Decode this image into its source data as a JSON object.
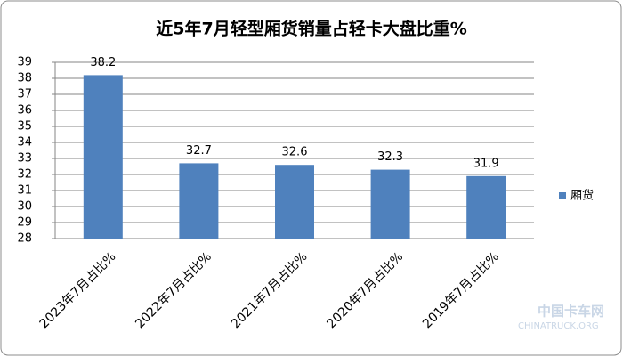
{
  "chart_data": {
    "type": "bar",
    "title": "近5年7月轻型厢货销量占轻卡大盘比重%",
    "categories": [
      "2023年7月占比%",
      "2022年7月占比%",
      "2021年7月占比%",
      "2020年7月占比%",
      "2019年7月占比%"
    ],
    "series": [
      {
        "name": "厢货",
        "color": "#4f81bd",
        "values": [
          38.2,
          32.7,
          32.6,
          32.3,
          31.9
        ]
      }
    ],
    "ylim": [
      28,
      39
    ],
    "yticks": [
      28,
      29,
      30,
      31,
      32,
      33,
      34,
      35,
      36,
      37,
      38,
      39
    ],
    "grid": true,
    "legend": "right",
    "data_labels": true,
    "watermark": [
      "中国卡车网",
      "CHINATRUCK.ORG"
    ]
  }
}
